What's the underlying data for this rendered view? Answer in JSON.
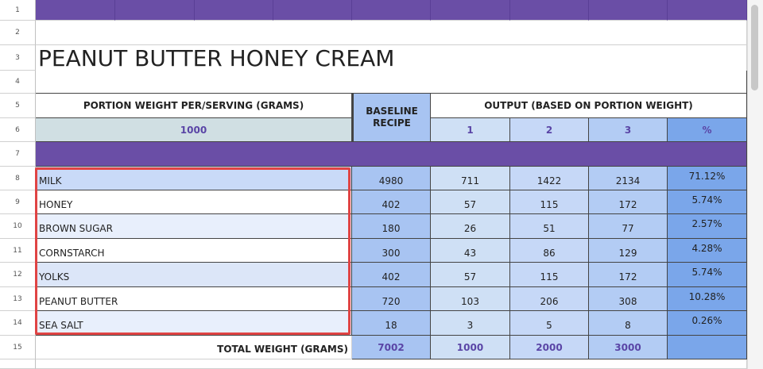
{
  "row_numbers": [
    "1",
    "2",
    "3",
    "4",
    "5",
    "6",
    "7",
    "8",
    "9",
    "10",
    "11",
    "12",
    "13",
    "14",
    "15"
  ],
  "title": "PEANUT BUTTER HONEY CREAM",
  "headers": {
    "portion_weight_label": "PORTION WEIGHT PER/SERVING (GRAMS)",
    "portion_weight_value": "1000",
    "baseline": "BASELINE RECIPE",
    "output": "OUTPUT (BASED ON PORTION WEIGHT)",
    "output_columns": [
      "1",
      "2",
      "3",
      "%"
    ]
  },
  "ingredients": [
    {
      "name": "MILK",
      "baseline": "4980",
      "outputs": [
        "711",
        "1422",
        "2134"
      ],
      "percent": "71.12%"
    },
    {
      "name": "HONEY",
      "baseline": "402",
      "outputs": [
        "57",
        "115",
        "172"
      ],
      "percent": "5.74%"
    },
    {
      "name": "BROWN SUGAR",
      "baseline": "180",
      "outputs": [
        "26",
        "51",
        "77"
      ],
      "percent": "2.57%"
    },
    {
      "name": "CORNSTARCH",
      "baseline": "300",
      "outputs": [
        "43",
        "86",
        "129"
      ],
      "percent": "4.28%"
    },
    {
      "name": "YOLKS",
      "baseline": "402",
      "outputs": [
        "57",
        "115",
        "172"
      ],
      "percent": "5.74%"
    },
    {
      "name": "PEANUT BUTTER",
      "baseline": "720",
      "outputs": [
        "103",
        "206",
        "308"
      ],
      "percent": "10.28%"
    },
    {
      "name": "SEA SALT",
      "baseline": "18",
      "outputs": [
        "3",
        "5",
        "8"
      ],
      "percent": "0.26%"
    }
  ],
  "totals": {
    "label": "TOTAL WEIGHT (GRAMS)",
    "baseline": "7002",
    "outputs": [
      "1000",
      "2000",
      "3000"
    ]
  }
}
